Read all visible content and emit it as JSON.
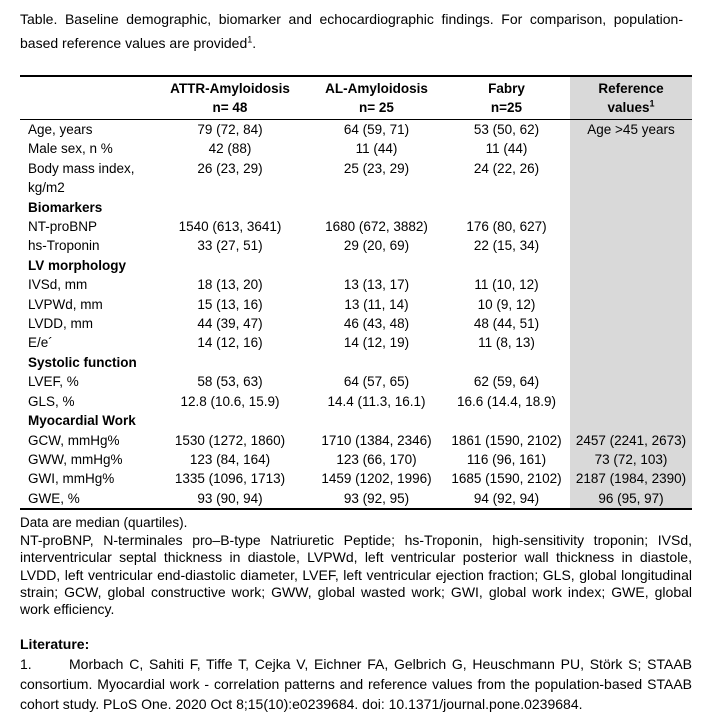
{
  "title": {
    "text": "Table. Baseline demographic, biomarker and echocardiographic findings. For comparison, population-based reference values are provided",
    "sup": "1",
    "after_sup": "."
  },
  "table": {
    "shading_color": "#d9d9d9",
    "columns": [
      {
        "line1": "",
        "line2": ""
      },
      {
        "line1": "ATTR-Amyloidosis",
        "line2": "n= 48"
      },
      {
        "line1": "AL-Amyloidosis",
        "line2": "n= 25"
      },
      {
        "line1": "Fabry",
        "line2": "n=25"
      },
      {
        "line1": "Reference",
        "line2": "values",
        "sup": "1"
      }
    ],
    "rows": [
      {
        "type": "data",
        "label": "Age, years",
        "values": [
          "79 (72, 84)",
          "64 (59, 71)",
          "53 (50, 62)"
        ],
        "reference": "Age >45 years"
      },
      {
        "type": "data",
        "label": "Male sex, n %",
        "values": [
          "42 (88)",
          "11 (44)",
          "11 (44)"
        ],
        "reference": ""
      },
      {
        "type": "data",
        "label": "Body mass index, kg/m2",
        "values": [
          "26 (23, 29)",
          "25 (23, 29)",
          "24 (22, 26)"
        ],
        "reference": ""
      },
      {
        "type": "section",
        "label": "Biomarkers"
      },
      {
        "type": "data",
        "label": "NT-proBNP",
        "values": [
          "1540 (613, 3641)",
          "1680 (672, 3882)",
          "176 (80, 627)"
        ],
        "reference": ""
      },
      {
        "type": "data",
        "label": "hs-Troponin",
        "values": [
          "33 (27, 51)",
          "29 (20, 69)",
          "22 (15, 34)"
        ],
        "reference": ""
      },
      {
        "type": "section",
        "label": "LV morphology"
      },
      {
        "type": "data",
        "label": "IVSd, mm",
        "values": [
          "18 (13, 20)",
          "13 (13, 17)",
          "11 (10, 12)"
        ],
        "reference": ""
      },
      {
        "type": "data",
        "label": "LVPWd, mm",
        "values": [
          "15 (13, 16)",
          "13 (11, 14)",
          "10 (9, 12)"
        ],
        "reference": ""
      },
      {
        "type": "data",
        "label": "LVDD, mm",
        "values": [
          "44 (39, 47)",
          "46 (43, 48)",
          "48 (44, 51)"
        ],
        "reference": ""
      },
      {
        "type": "data",
        "label": "E/e´",
        "values": [
          "14 (12, 16)",
          "14 (12, 19)",
          "11 (8, 13)"
        ],
        "reference": ""
      },
      {
        "type": "section",
        "label": "Systolic function"
      },
      {
        "type": "data",
        "label": "LVEF, %",
        "values": [
          "58 (53, 63)",
          "64 (57, 65)",
          "62 (59, 64)"
        ],
        "reference": ""
      },
      {
        "type": "data",
        "label": "GLS, %",
        "values": [
          "12.8 (10.6, 15.9)",
          "14.4 (11.3, 16.1)",
          "16.6 (14.4, 18.9)"
        ],
        "reference": ""
      },
      {
        "type": "section",
        "label": "Myocardial Work"
      },
      {
        "type": "data",
        "label": "GCW, mmHg%",
        "values": [
          "1530 (1272, 1860)",
          "1710 (1384, 2346)",
          "1861 (1590, 2102)"
        ],
        "reference": "2457 (2241, 2673)"
      },
      {
        "type": "data",
        "label": "GWW, mmHg%",
        "values": [
          "123 (84, 164)",
          "123 (66, 170)",
          "116 (96, 161)"
        ],
        "reference": "73 (72, 103)"
      },
      {
        "type": "data",
        "label": "GWI, mmHg%",
        "values": [
          "1335 (1096, 1713)",
          "1459 (1202, 1996)",
          "1685 (1590, 2102)"
        ],
        "reference": "2187 (1984, 2390)"
      },
      {
        "type": "data",
        "label": "GWE, %",
        "values": [
          "93 (90, 94)",
          "93 (92, 95)",
          "94 (92, 94)"
        ],
        "reference": "96 (95, 97)"
      }
    ]
  },
  "footnotes": {
    "data_note": "Data are median (quartiles).",
    "abbreviations": "NT-proBNP, N-terminales pro–B-type Natriuretic Peptide; hs-Troponin, high-sensitivity troponin; IVSd, interventricular septal thickness in diastole, LVPWd, left ventricular posterior wall thickness in diastole, LVDD, left ventricular end-diastolic diameter, LVEF, left ventricular ejection fraction; GLS, global longitudinal strain; GCW, global constructive work; GWW, global wasted work; GWI, global work index; GWE, global work efficiency."
  },
  "literature": {
    "heading": "Literature:",
    "items": [
      {
        "number": "1.",
        "text": "Morbach C, Sahiti F, Tiffe T, Cejka V, Eichner FA, Gelbrich G, Heuschmann PU, Störk S; STAAB consortium. Myocardial work - correlation patterns and reference values from the population-based STAAB cohort study. PLoS One. 2020 Oct 8;15(10):e0239684. doi: 10.1371/journal.pone.0239684."
      }
    ]
  }
}
